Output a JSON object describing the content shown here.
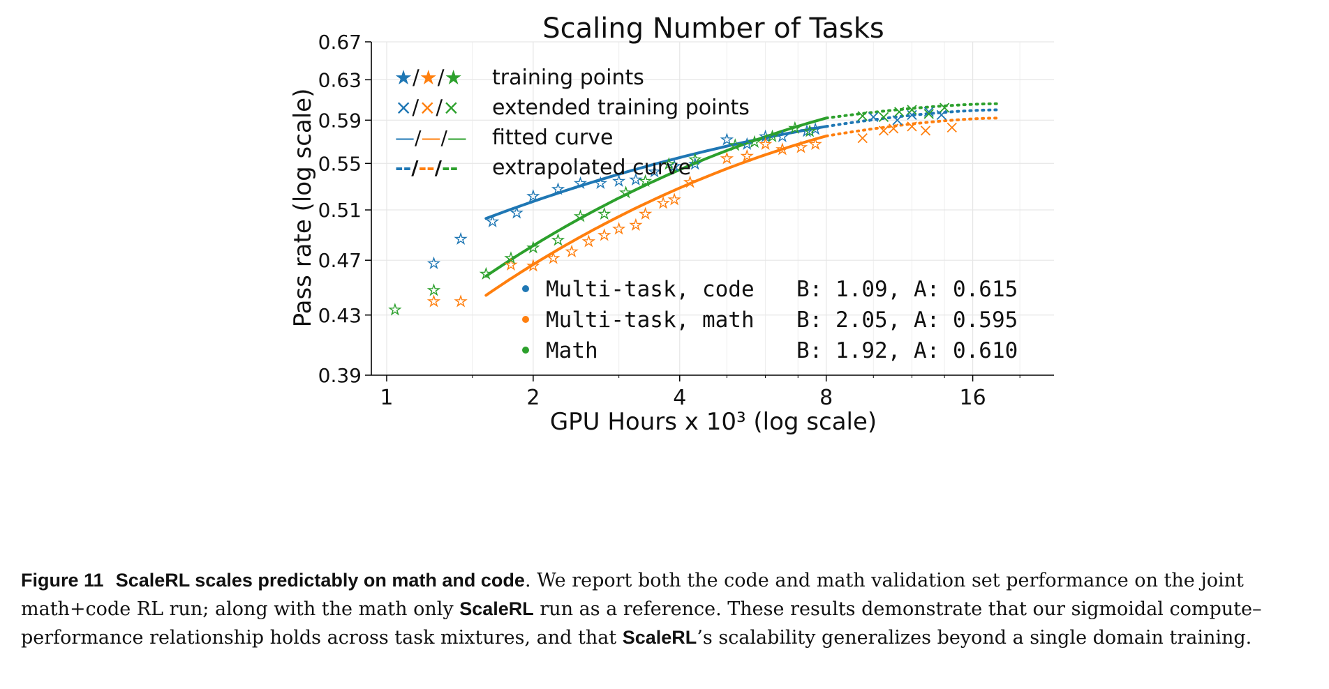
{
  "chart_data": {
    "type": "line",
    "title": "Scaling Number of Tasks",
    "xlabel": "GPU Hours x 10³ (log scale)",
    "ylabel": "Pass rate (log scale)",
    "xscale": "log2",
    "yscale": "log",
    "xlim": [
      0.93,
      23.5
    ],
    "ylim": [
      0.39,
      0.67
    ],
    "xticks": [
      1,
      2,
      4,
      8,
      16
    ],
    "xtick_labels": [
      "1",
      "2",
      "4",
      "8",
      "16"
    ],
    "yticks": [
      0.39,
      0.43,
      0.47,
      0.51,
      0.55,
      0.59,
      0.63,
      0.67
    ],
    "ytick_labels": [
      "0.39",
      "0.43",
      "0.47",
      "0.51",
      "0.55",
      "0.59",
      "0.63",
      "0.67"
    ],
    "grid": true,
    "style_legend": [
      {
        "marker_text": "★/★/★",
        "label": "training points"
      },
      {
        "marker_text": "×/×/×",
        "label": "extended training points"
      },
      {
        "marker_text": "—/—/—",
        "label": "fitted curve"
      },
      {
        "marker_text": "--/--/--",
        "label": "extrapolated curve"
      }
    ],
    "series": [
      {
        "name": "Multi-task, code",
        "params": "B: 1.09, A: 0.615",
        "color": "#1f77b4",
        "fit": {
          "x_start": 1.6,
          "x_fit_end": 8.0,
          "x_extrap_end": 18.0,
          "y_start": 0.503,
          "y_fit_end": 0.584,
          "y_extrap_end": 0.6
        },
        "training_points": [
          [
            1.25,
            0.468
          ],
          [
            1.42,
            0.487
          ],
          [
            1.65,
            0.501
          ],
          [
            1.85,
            0.508
          ],
          [
            2.0,
            0.522
          ],
          [
            2.25,
            0.528
          ],
          [
            2.5,
            0.533
          ],
          [
            2.75,
            0.533
          ],
          [
            3.0,
            0.535
          ],
          [
            3.25,
            0.536
          ],
          [
            3.55,
            0.543
          ],
          [
            3.9,
            0.548
          ],
          [
            4.3,
            0.55
          ],
          [
            5.0,
            0.572
          ],
          [
            5.5,
            0.568
          ],
          [
            6.0,
            0.575
          ],
          [
            6.5,
            0.575
          ],
          [
            7.3,
            0.58
          ],
          [
            7.6,
            0.582
          ]
        ],
        "extended_points": [
          [
            10.0,
            0.593
          ],
          [
            11.2,
            0.59
          ],
          [
            12.0,
            0.595
          ],
          [
            13.0,
            0.598
          ],
          [
            13.8,
            0.595
          ]
        ]
      },
      {
        "name": "Multi-task, math",
        "params": "B: 2.05, A: 0.595",
        "color": "#ff7f0e",
        "fit": {
          "x_start": 1.6,
          "x_fit_end": 8.0,
          "x_extrap_end": 18.0,
          "y_start": 0.444,
          "y_fit_end": 0.575,
          "y_extrap_end": 0.592
        },
        "training_points": [
          [
            1.25,
            0.44
          ],
          [
            1.42,
            0.44
          ],
          [
            1.8,
            0.467
          ],
          [
            2.0,
            0.466
          ],
          [
            2.2,
            0.472
          ],
          [
            2.4,
            0.477
          ],
          [
            2.6,
            0.485
          ],
          [
            2.8,
            0.49
          ],
          [
            3.0,
            0.495
          ],
          [
            3.25,
            0.498
          ],
          [
            3.4,
            0.507
          ],
          [
            3.7,
            0.516
          ],
          [
            3.9,
            0.519
          ],
          [
            4.2,
            0.534
          ],
          [
            5.0,
            0.555
          ],
          [
            5.5,
            0.557
          ],
          [
            6.0,
            0.568
          ],
          [
            6.5,
            0.563
          ],
          [
            7.1,
            0.565
          ],
          [
            7.6,
            0.568
          ]
        ],
        "extended_points": [
          [
            9.5,
            0.573
          ],
          [
            10.5,
            0.58
          ],
          [
            11.0,
            0.582
          ],
          [
            12.0,
            0.584
          ],
          [
            12.8,
            0.58
          ],
          [
            14.5,
            0.583
          ]
        ]
      },
      {
        "name": "Math",
        "params": "B: 1.92, A: 0.610",
        "color": "#2ca02c",
        "fit": {
          "x_start": 1.6,
          "x_fit_end": 8.0,
          "x_extrap_end": 18.0,
          "y_start": 0.458,
          "y_fit_end": 0.592,
          "y_extrap_end": 0.606
        },
        "training_points": [
          [
            1.04,
            0.434
          ],
          [
            1.25,
            0.448
          ],
          [
            1.6,
            0.46
          ],
          [
            1.8,
            0.472
          ],
          [
            2.0,
            0.48
          ],
          [
            2.25,
            0.486
          ],
          [
            2.5,
            0.505
          ],
          [
            2.8,
            0.507
          ],
          [
            3.1,
            0.525
          ],
          [
            3.4,
            0.535
          ],
          [
            3.8,
            0.55
          ],
          [
            4.3,
            0.554
          ],
          [
            5.2,
            0.567
          ],
          [
            5.7,
            0.57
          ],
          [
            6.2,
            0.575
          ],
          [
            6.9,
            0.583
          ],
          [
            7.4,
            0.58
          ]
        ],
        "extended_points": [
          [
            9.5,
            0.594
          ],
          [
            10.5,
            0.593
          ],
          [
            11.3,
            0.598
          ],
          [
            12.0,
            0.6
          ],
          [
            13.0,
            0.596
          ],
          [
            14.0,
            0.602
          ]
        ]
      }
    ]
  },
  "caption": {
    "label": "Figure 11",
    "title": "ScaleRL scales predictably on math and code",
    "text_1": ". We report both the code and math validation set performance on the joint math+code RL run; along with the math only ",
    "bold_1": "ScaleRL",
    "text_2": " run as a reference. These results demonstrate that our sigmoidal compute–performance relationship holds across task mixtures, and that ",
    "bold_2": "ScaleRL",
    "text_3": "’s scalability generalizes beyond a single domain training."
  }
}
